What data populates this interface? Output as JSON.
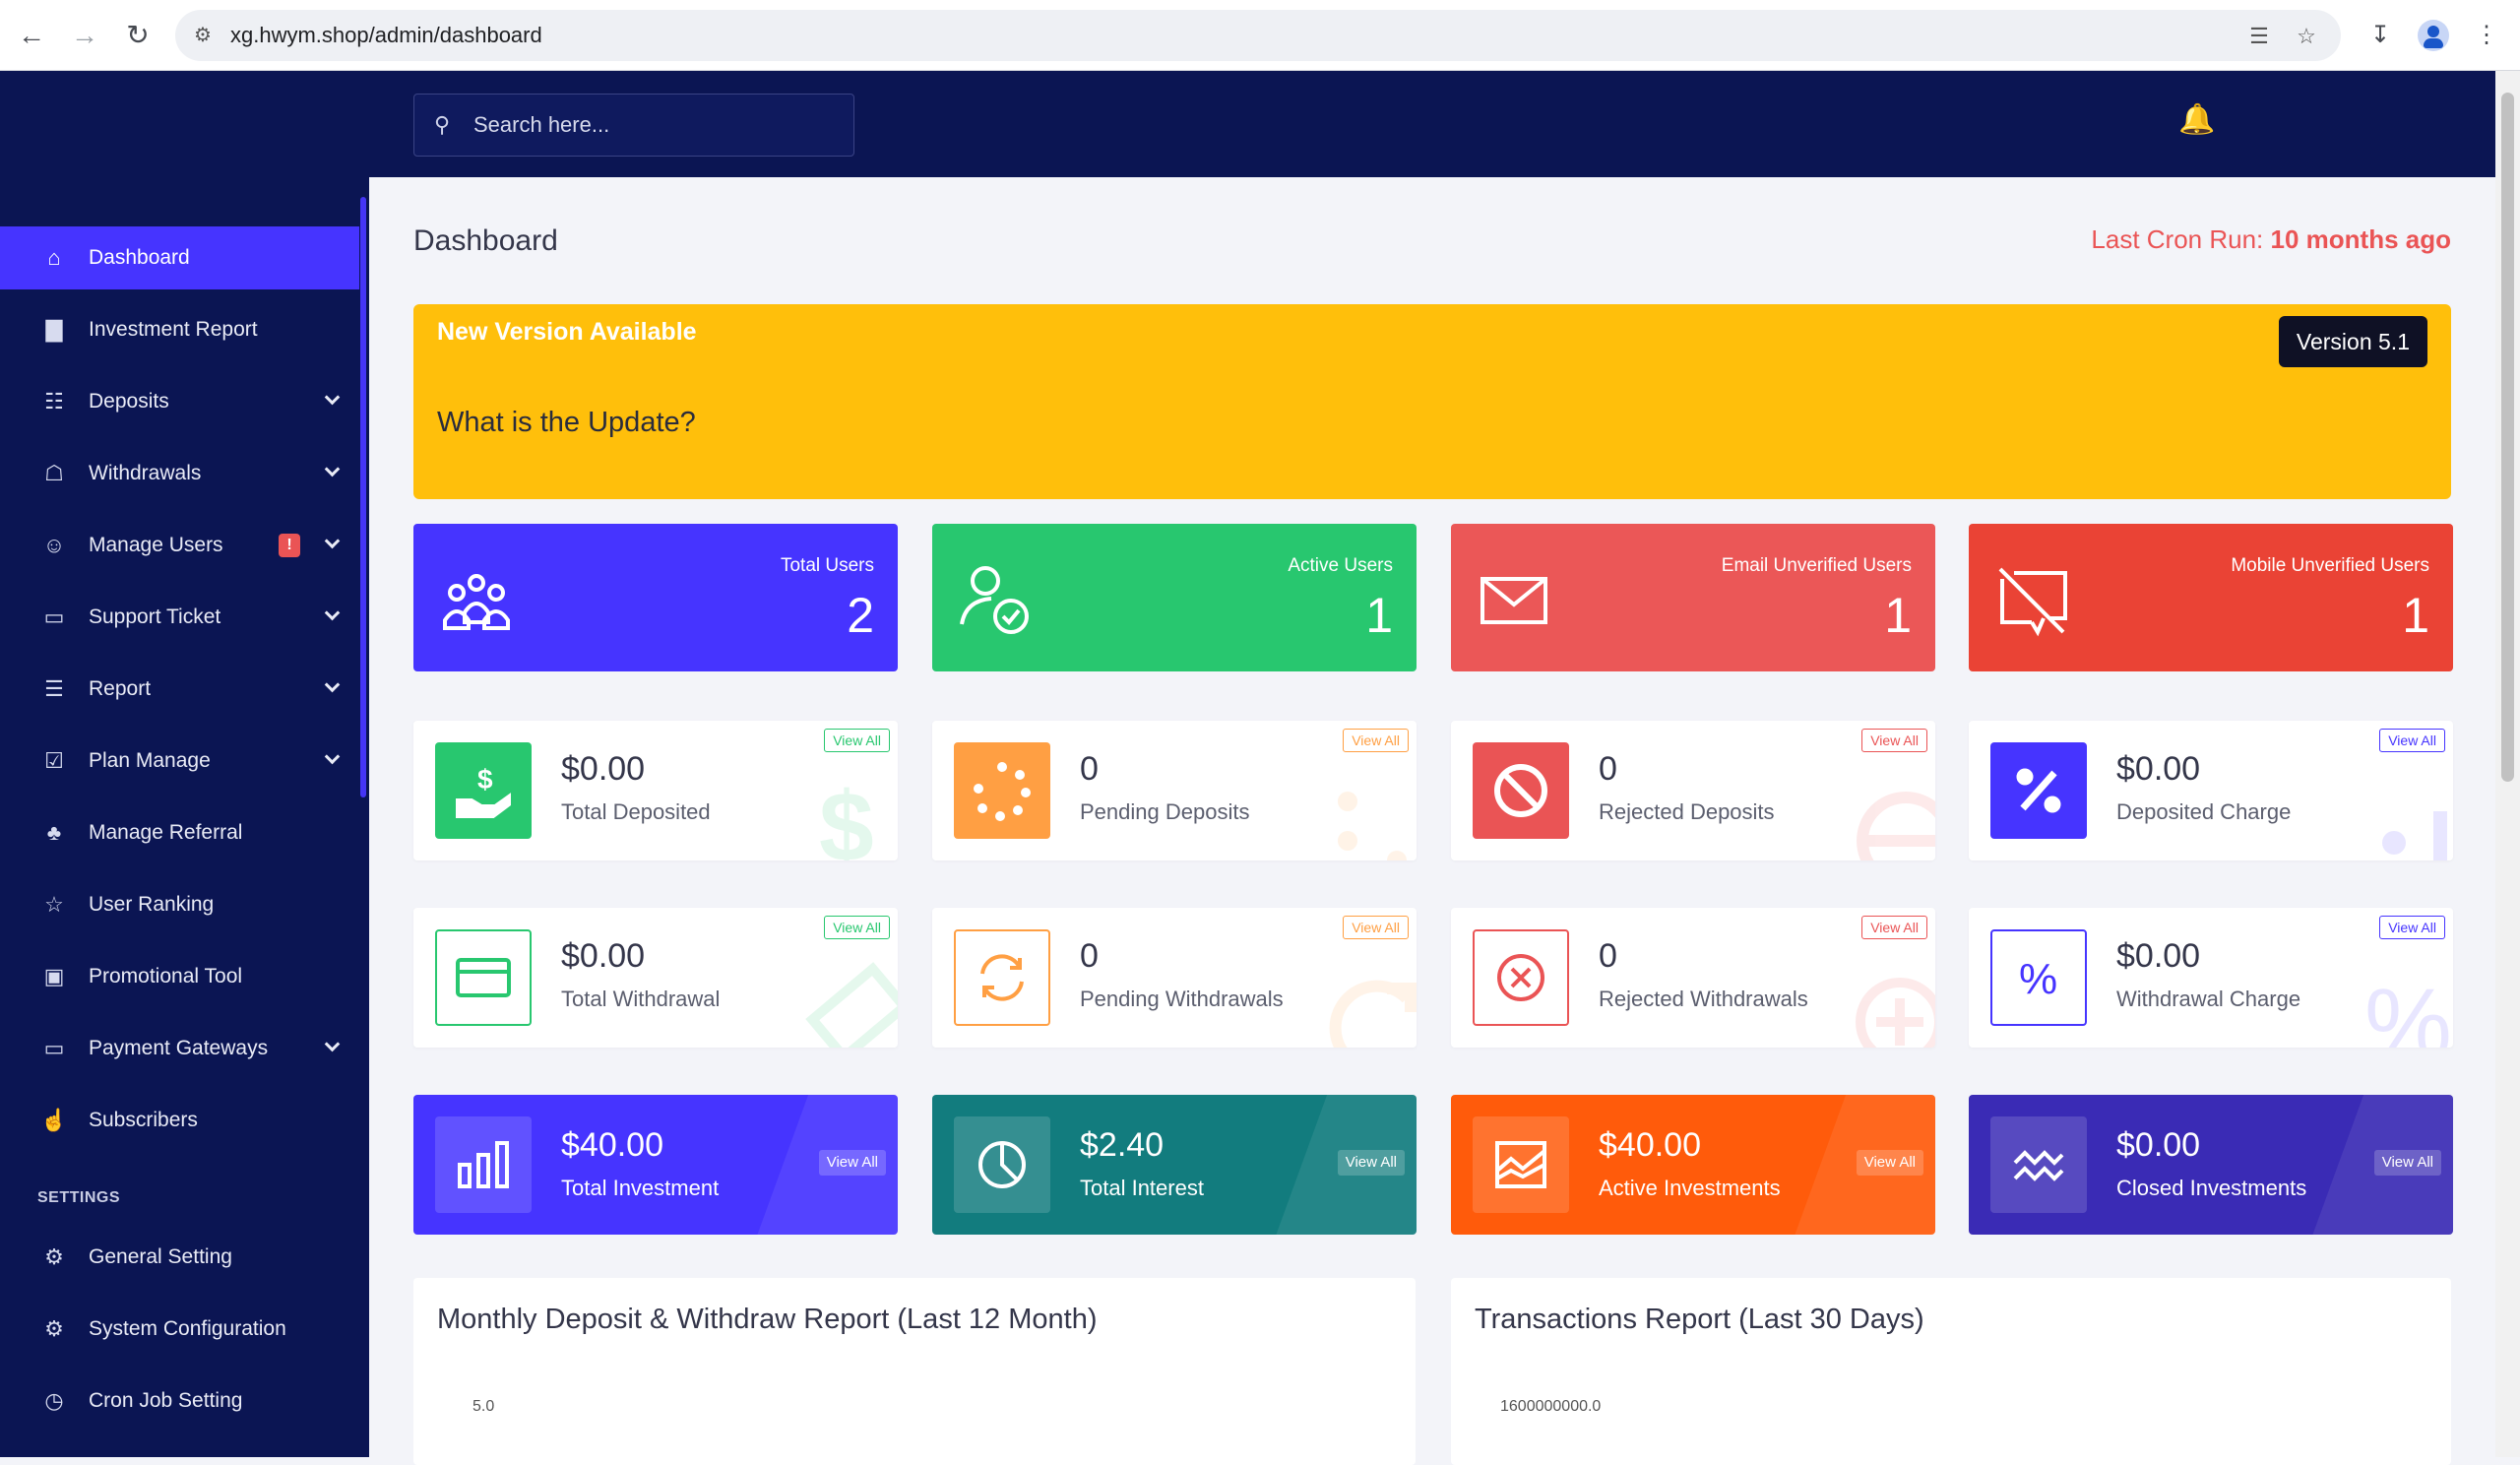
{
  "browser": {
    "url": "xg.hwym.shop/admin/dashboard"
  },
  "topbar": {
    "search_placeholder": "Search here..."
  },
  "sidebar": {
    "items": [
      {
        "label": "Dashboard",
        "icon": "home-icon",
        "active": true
      },
      {
        "label": "Investment Report",
        "icon": "bar-chart-icon"
      },
      {
        "label": "Deposits",
        "icon": "deposit-icon",
        "expandable": true
      },
      {
        "label": "Withdrawals",
        "icon": "bank-icon",
        "expandable": true
      },
      {
        "label": "Manage Users",
        "icon": "users-icon",
        "expandable": true,
        "alert": "!"
      },
      {
        "label": "Support Ticket",
        "icon": "ticket-icon",
        "expandable": true
      },
      {
        "label": "Report",
        "icon": "list-icon",
        "expandable": true
      },
      {
        "label": "Plan Manage",
        "icon": "clipboard-icon",
        "expandable": true
      },
      {
        "label": "Manage Referral",
        "icon": "referral-icon"
      },
      {
        "label": "User Ranking",
        "icon": "medal-icon"
      },
      {
        "label": "Promotional Tool",
        "icon": "promo-icon"
      },
      {
        "label": "Payment Gateways",
        "icon": "card-icon",
        "expandable": true
      },
      {
        "label": "Subscribers",
        "icon": "thumbs-up-icon"
      }
    ],
    "settings_title": "SETTINGS",
    "settings_items": [
      {
        "label": "General Setting",
        "icon": "cog-icon"
      },
      {
        "label": "System Configuration",
        "icon": "gear-icon"
      },
      {
        "label": "Cron Job Setting",
        "icon": "clock-icon"
      }
    ]
  },
  "main": {
    "page_title": "Dashboard",
    "cron_label": "Last Cron Run:",
    "cron_value": "10 months ago",
    "update": {
      "title": "New Version Available",
      "question": "What is the Update?",
      "version": "Version 5.1"
    },
    "user_cards": [
      {
        "label": "Total Users",
        "value": "2",
        "color": "#4634ff"
      },
      {
        "label": "Active Users",
        "value": "1",
        "color": "#28c76f"
      },
      {
        "label": "Email Unverified Users",
        "value": "1",
        "color": "#eb5757"
      },
      {
        "label": "Mobile Unverified Users",
        "value": "1",
        "color": "#ea4335"
      }
    ],
    "deposit_cards": [
      {
        "value": "$0.00",
        "label": "Total Deposited",
        "view_all": "View All",
        "color": "#28c76f"
      },
      {
        "value": "0",
        "label": "Pending Deposits",
        "view_all": "View All",
        "color": "#ff9f43"
      },
      {
        "value": "0",
        "label": "Rejected Deposits",
        "view_all": "View All",
        "color": "#ea5455"
      },
      {
        "value": "$0.00",
        "label": "Deposited Charge",
        "view_all": "View All",
        "color": "#4634ff"
      }
    ],
    "withdraw_cards": [
      {
        "value": "$0.00",
        "label": "Total Withdrawal",
        "view_all": "View All",
        "color": "#28c76f"
      },
      {
        "value": "0",
        "label": "Pending Withdrawals",
        "view_all": "View All",
        "color": "#ff9f43"
      },
      {
        "value": "0",
        "label": "Rejected Withdrawals",
        "view_all": "View All",
        "color": "#ea5455"
      },
      {
        "value": "$0.00",
        "label": "Withdrawal Charge",
        "view_all": "View All",
        "color": "#4634ff"
      }
    ],
    "investment_cards": [
      {
        "value": "$40.00",
        "label": "Total Investment",
        "view_all": "View All",
        "color": "#4634ff"
      },
      {
        "value": "$2.40",
        "label": "Total Interest",
        "view_all": "View All",
        "color": "#127c7e"
      },
      {
        "value": "$40.00",
        "label": "Active Investments",
        "view_all": "View All",
        "color": "#ff5b0b"
      },
      {
        "value": "$0.00",
        "label": "Closed Investments",
        "view_all": "View All",
        "color": "#3a2bb5"
      }
    ],
    "reports": [
      {
        "title": "Monthly Deposit & Withdraw Report (Last 12 Month)",
        "tick": "5.0"
      },
      {
        "title": "Transactions Report (Last 30 Days)",
        "tick": "1600000000.0"
      }
    ]
  }
}
